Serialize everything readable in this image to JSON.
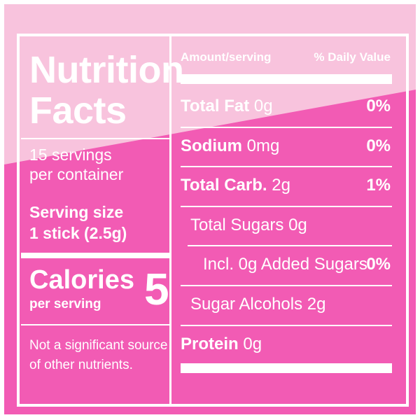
{
  "colors": {
    "background_dark": "#f25bb4",
    "background_light": "#f8c3dd",
    "text": "#ffffff"
  },
  "panel": {
    "title_line1": "Nutrition",
    "title_line2": "Facts",
    "servings_line1": "15 servings",
    "servings_line2": "per container",
    "serving_size_label": "Serving size",
    "serving_size_value": "1 stick (2.5g)",
    "calories_label": "Calories",
    "calories_sub": "per serving",
    "calories_value": "5",
    "footnote_line1": "Not a significant source",
    "footnote_line2": "of other nutrients."
  },
  "table": {
    "header_amount": "Amount/serving",
    "header_dv": "% Daily Value",
    "rows": [
      {
        "name": "Total Fat",
        "amount": " 0g",
        "dv": "0%"
      },
      {
        "name": "Sodium",
        "amount": " 0mg",
        "dv": "0%"
      },
      {
        "name": "Total Carb.",
        "amount": " 2g",
        "dv": "1%"
      },
      {
        "name": "",
        "amount": "Total Sugars 0g",
        "dv": ""
      },
      {
        "name": "",
        "amount": "Incl. 0g Added Sugars",
        "dv": "0%"
      },
      {
        "name": "",
        "amount": "Sugar Alcohols 2g",
        "dv": ""
      },
      {
        "name": "Protein",
        "amount": " 0g",
        "dv": ""
      }
    ]
  }
}
